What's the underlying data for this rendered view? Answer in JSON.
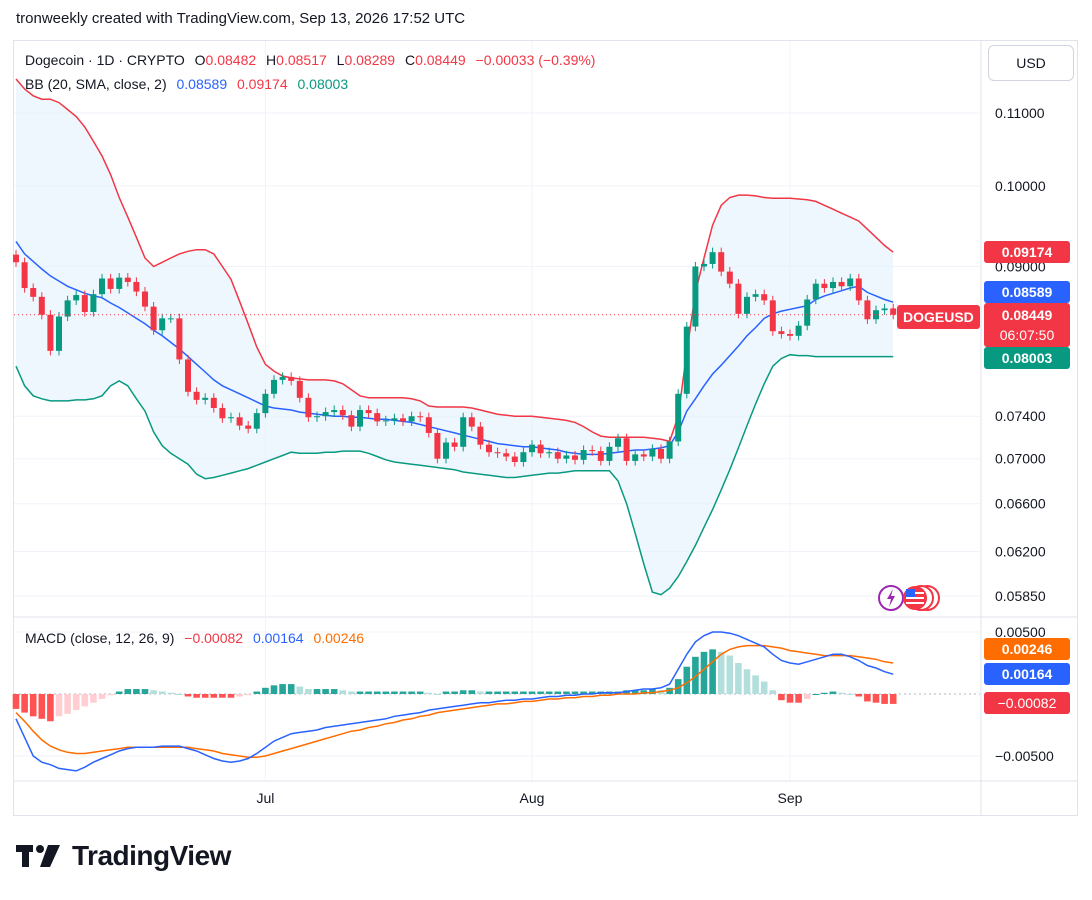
{
  "header": {
    "text": "tronweekly created with TradingView.com, Sep 13, 2026 17:52 UTC"
  },
  "currency": "USD",
  "symbol_tag": "DOGEUSD",
  "countdown": "06:07:50",
  "legend": {
    "title": "Dogecoin · 1D · CRYPTO",
    "o_label": "O",
    "o_value": "0.08482",
    "h_label": "H",
    "h_value": "0.08517",
    "l_label": "L",
    "l_value": "0.08289",
    "c_label": "C",
    "c_value": "0.08449",
    "change": "−0.00033 (−0.39%)",
    "bb_title": "BB (20, SMA, close, 2)",
    "bb_basis": "0.08589",
    "bb_upper": "0.09174",
    "bb_lower": "0.08003",
    "macd_title": "MACD (close, 12, 26, 9)",
    "macd_hist": "−0.00082",
    "macd_line": "0.00164",
    "macd_signal": "0.00246"
  },
  "price_tags": {
    "upper": "0.09174",
    "basis": "0.08589",
    "last": "0.08449",
    "lower": "0.08003",
    "macd_signal": "0.00246",
    "macd_line": "0.00164",
    "macd_hist": "−0.00082"
  },
  "colors": {
    "up": "#089981",
    "down": "#f23645",
    "basis": "#2962ff",
    "upper": "#f23645",
    "lower": "#089981",
    "macd": "#2962ff",
    "signal": "#ff6d00",
    "fill": "#e3f2fd"
  },
  "branding": "TradingView",
  "chart_data": [
    {
      "type": "candlestick",
      "title": "Dogecoin · 1D · CRYPTO",
      "x_axis_labels": [
        "Jul",
        "Aug",
        "Sep"
      ],
      "y_ticks": [
        "0.11000",
        "0.10000",
        "0.09000",
        "0.07400",
        "0.07000",
        "0.06600",
        "0.06200",
        "0.05850"
      ],
      "y_tick_values": [
        0.11,
        0.1,
        0.09,
        0.074,
        0.07,
        0.066,
        0.062,
        0.0585
      ],
      "y_scale": "log",
      "grid": true,
      "close": [
        0.0905,
        0.0875,
        0.0865,
        0.0845,
        0.0806,
        0.0843,
        0.0861,
        0.0867,
        0.0848,
        0.0868,
        0.0886,
        0.0874,
        0.0887,
        0.0882,
        0.0871,
        0.0854,
        0.0828,
        0.0841,
        0.0841,
        0.0797,
        0.0764,
        0.0756,
        0.0758,
        0.0748,
        0.0738,
        0.0739,
        0.0731,
        0.0728,
        0.0743,
        0.0762,
        0.0776,
        0.0779,
        0.0775,
        0.0758,
        0.0739,
        0.074,
        0.0744,
        0.0746,
        0.0741,
        0.073,
        0.0746,
        0.0743,
        0.0735,
        0.0736,
        0.0738,
        0.0735,
        0.074,
        0.0739,
        0.0724,
        0.07,
        0.0715,
        0.0711,
        0.0739,
        0.073,
        0.0713,
        0.0706,
        0.0705,
        0.0702,
        0.0697,
        0.0706,
        0.0713,
        0.0705,
        0.0706,
        0.07,
        0.0703,
        0.0699,
        0.0708,
        0.0707,
        0.0698,
        0.0711,
        0.0719,
        0.0698,
        0.0704,
        0.0702,
        0.0709,
        0.07,
        0.0716,
        0.0762,
        0.0832,
        0.09,
        0.0903,
        0.0917,
        0.0894,
        0.088,
        0.0846,
        0.0865,
        0.0868,
        0.0861,
        0.0827,
        0.0824,
        0.0822,
        0.0833,
        0.0862,
        0.088,
        0.0875,
        0.0882,
        0.0877,
        0.0886,
        0.0861,
        0.084,
        0.085,
        0.0852,
        0.0845
      ],
      "bb_basis": [
        0.093,
        0.0915,
        0.0906,
        0.0897,
        0.0889,
        0.0883,
        0.0877,
        0.0873,
        0.0869,
        0.0866,
        0.0864,
        0.0858,
        0.0853,
        0.0847,
        0.0841,
        0.0835,
        0.0828,
        0.0822,
        0.0815,
        0.0808,
        0.08,
        0.0792,
        0.0784,
        0.0776,
        0.077,
        0.0766,
        0.0762,
        0.0758,
        0.0754,
        0.075,
        0.0748,
        0.0747,
        0.0746,
        0.0744,
        0.0743,
        0.0742,
        0.0741,
        0.074,
        0.074,
        0.0739,
        0.0739,
        0.0738,
        0.0737,
        0.0737,
        0.0736,
        0.0735,
        0.0734,
        0.0732,
        0.073,
        0.0728,
        0.0726,
        0.0724,
        0.0722,
        0.072,
        0.0718,
        0.0716,
        0.0714,
        0.0713,
        0.0712,
        0.0711,
        0.0711,
        0.071,
        0.0709,
        0.0708,
        0.0706,
        0.0705,
        0.0704,
        0.0704,
        0.0704,
        0.0705,
        0.0706,
        0.0707,
        0.0708,
        0.0708,
        0.0709,
        0.071,
        0.0712,
        0.0725,
        0.0745,
        0.0757,
        0.077,
        0.0782,
        0.0791,
        0.0801,
        0.0811,
        0.0822,
        0.0831,
        0.0841,
        0.0846,
        0.0849,
        0.0851,
        0.0853,
        0.0855,
        0.0862,
        0.0866,
        0.0869,
        0.0872,
        0.0875,
        0.0877,
        0.087,
        0.0866,
        0.0862,
        0.0859
      ],
      "bb_upper": [
        0.115,
        0.1135,
        0.1125,
        0.112,
        0.112,
        0.1115,
        0.1105,
        0.1095,
        0.108,
        0.106,
        0.104,
        0.1015,
        0.0985,
        0.096,
        0.0935,
        0.091,
        0.09,
        0.0905,
        0.091,
        0.0915,
        0.0918,
        0.092,
        0.092,
        0.0915,
        0.09,
        0.0885,
        0.086,
        0.0835,
        0.081,
        0.0792,
        0.0785,
        0.078,
        0.0778,
        0.0777,
        0.0776,
        0.0776,
        0.0776,
        0.0775,
        0.0772,
        0.0766,
        0.076,
        0.0758,
        0.0758,
        0.0758,
        0.0758,
        0.0758,
        0.0757,
        0.0755,
        0.075,
        0.0749,
        0.0749,
        0.0749,
        0.0749,
        0.0748,
        0.0746,
        0.0744,
        0.0742,
        0.0741,
        0.074,
        0.074,
        0.074,
        0.0739,
        0.0738,
        0.0737,
        0.0736,
        0.0734,
        0.073,
        0.0725,
        0.0721,
        0.072,
        0.072,
        0.072,
        0.072,
        0.072,
        0.0719,
        0.0718,
        0.0716,
        0.074,
        0.0805,
        0.087,
        0.091,
        0.095,
        0.0975,
        0.0985,
        0.0988,
        0.0988,
        0.0987,
        0.0985,
        0.0984,
        0.0984,
        0.0984,
        0.0983,
        0.0982,
        0.098,
        0.0975,
        0.097,
        0.0965,
        0.096,
        0.0955,
        0.0945,
        0.0935,
        0.0925,
        0.0917
      ],
      "bb_lower": [
        0.079,
        0.077,
        0.076,
        0.0757,
        0.0755,
        0.0755,
        0.0755,
        0.0756,
        0.0756,
        0.0757,
        0.076,
        0.077,
        0.0775,
        0.077,
        0.0757,
        0.0745,
        0.0725,
        0.0712,
        0.0705,
        0.07,
        0.0695,
        0.0686,
        0.0682,
        0.0683,
        0.0685,
        0.0687,
        0.0689,
        0.0691,
        0.0694,
        0.0697,
        0.07,
        0.0703,
        0.0706,
        0.0705,
        0.0705,
        0.0705,
        0.0706,
        0.0706,
        0.0707,
        0.0707,
        0.0707,
        0.0705,
        0.0702,
        0.0699,
        0.0697,
        0.0696,
        0.0695,
        0.0694,
        0.0693,
        0.0692,
        0.0691,
        0.069,
        0.0688,
        0.0687,
        0.0686,
        0.0685,
        0.0684,
        0.0683,
        0.0683,
        0.0684,
        0.0685,
        0.0686,
        0.0687,
        0.0687,
        0.0688,
        0.0689,
        0.0689,
        0.0689,
        0.0689,
        0.0689,
        0.068,
        0.066,
        0.0635,
        0.061,
        0.0588,
        0.0586,
        0.0591,
        0.06,
        0.0612,
        0.0625,
        0.064,
        0.0655,
        0.0672,
        0.069,
        0.071,
        0.0731,
        0.0752,
        0.0772,
        0.079,
        0.0798,
        0.0802,
        0.0801,
        0.0801,
        0.08,
        0.08,
        0.08,
        0.08,
        0.08,
        0.08,
        0.08,
        0.08,
        0.08,
        0.08
      ]
    },
    {
      "type": "macd",
      "title": "MACD (close, 12, 26, 9)",
      "y_ticks": [
        "0.00500",
        "−0.00500"
      ],
      "y_tick_values": [
        0.005,
        -0.005
      ],
      "histogram": [
        -0.0012,
        -0.0015,
        -0.0018,
        -0.002,
        -0.0022,
        -0.0018,
        -0.0016,
        -0.0013,
        -0.001,
        -0.0007,
        -0.0004,
        -0.0001,
        0.0002,
        0.0004,
        0.0004,
        0.0004,
        0.0003,
        0.0002,
        0.0001,
        0.0,
        -0.0002,
        -0.0003,
        -0.0003,
        -0.0003,
        -0.0003,
        -0.0003,
        -0.0002,
        -0.0001,
        0.0002,
        0.0005,
        0.0007,
        0.0008,
        0.0008,
        0.0006,
        0.0004,
        0.0004,
        0.0004,
        0.0004,
        0.0003,
        0.0002,
        0.0002,
        0.0002,
        0.0002,
        0.0002,
        0.0002,
        0.0002,
        0.0002,
        0.0002,
        0.0001,
        0.0,
        0.0002,
        0.0002,
        0.0003,
        0.0003,
        0.0002,
        0.0002,
        0.0002,
        0.0002,
        0.0002,
        0.0002,
        0.0002,
        0.0002,
        0.0002,
        0.0002,
        0.0002,
        0.0002,
        0.0002,
        0.0002,
        0.0002,
        0.0002,
        0.0002,
        0.0003,
        0.0003,
        0.0003,
        0.0004,
        0.0003,
        0.0005,
        0.0012,
        0.0022,
        0.003,
        0.0034,
        0.0036,
        0.0034,
        0.0031,
        0.0025,
        0.002,
        0.0015,
        0.001,
        0.0003,
        -0.0005,
        -0.0007,
        -0.0007,
        -0.0004,
        0.0,
        0.0001,
        0.0002,
        0.0001,
        0.0,
        -0.0002,
        -0.0006,
        -0.0007,
        -0.0008,
        -0.0008
      ],
      "macd": [
        -0.002,
        -0.0035,
        -0.005,
        -0.0055,
        -0.0057,
        -0.006,
        -0.0061,
        -0.0062,
        -0.0059,
        -0.0055,
        -0.0052,
        -0.0049,
        -0.0046,
        -0.0044,
        -0.0043,
        -0.0043,
        -0.0043,
        -0.0042,
        -0.0042,
        -0.0042,
        -0.0044,
        -0.0046,
        -0.0049,
        -0.0052,
        -0.0054,
        -0.0055,
        -0.0054,
        -0.0052,
        -0.0048,
        -0.0043,
        -0.0038,
        -0.0035,
        -0.0032,
        -0.0031,
        -0.003,
        -0.0029,
        -0.0027,
        -0.0026,
        -0.0025,
        -0.0024,
        -0.0023,
        -0.0022,
        -0.0021,
        -0.002,
        -0.0018,
        -0.0017,
        -0.0016,
        -0.0015,
        -0.0013,
        -0.0012,
        -0.0011,
        -0.001,
        -0.0009,
        -0.0008,
        -0.0007,
        -0.0007,
        -0.0006,
        -0.0005,
        -0.0005,
        -0.0004,
        -0.0004,
        -0.0003,
        -0.0002,
        -0.0002,
        -0.0001,
        -0.0001,
        0.0,
        0.0,
        0.0001,
        0.0001,
        0.0001,
        0.0002,
        0.0003,
        0.0004,
        0.0004,
        0.0005,
        0.0008,
        0.002,
        0.0032,
        0.0042,
        0.0047,
        0.005,
        0.005,
        0.0049,
        0.0047,
        0.0044,
        0.0041,
        0.0038,
        0.0032,
        0.0027,
        0.0025,
        0.0024,
        0.0026,
        0.0028,
        0.003,
        0.0032,
        0.0032,
        0.003,
        0.0027,
        0.0023,
        0.0021,
        0.0018,
        0.0016
      ],
      "signal": [
        -0.0015,
        -0.0022,
        -0.003,
        -0.0037,
        -0.0042,
        -0.0045,
        -0.0047,
        -0.0048,
        -0.0048,
        -0.0047,
        -0.0046,
        -0.0045,
        -0.0044,
        -0.0043,
        -0.0043,
        -0.0043,
        -0.0043,
        -0.0043,
        -0.0043,
        -0.0043,
        -0.0043,
        -0.0044,
        -0.0045,
        -0.0046,
        -0.0048,
        -0.0049,
        -0.005,
        -0.0051,
        -0.0051,
        -0.005,
        -0.0048,
        -0.0046,
        -0.0044,
        -0.0042,
        -0.004,
        -0.0038,
        -0.0036,
        -0.0034,
        -0.0032,
        -0.003,
        -0.0029,
        -0.0027,
        -0.0026,
        -0.0024,
        -0.0023,
        -0.0021,
        -0.002,
        -0.0018,
        -0.0017,
        -0.0015,
        -0.0014,
        -0.0013,
        -0.0012,
        -0.0011,
        -0.001,
        -0.0009,
        -0.0008,
        -0.0008,
        -0.0007,
        -0.0006,
        -0.0006,
        -0.0005,
        -0.0004,
        -0.0004,
        -0.0003,
        -0.0003,
        -0.0002,
        -0.0002,
        -0.0001,
        -0.0001,
        0.0,
        0.0,
        0.0,
        0.0001,
        0.0001,
        0.0002,
        0.0003,
        0.0005,
        0.0009,
        0.0014,
        0.002,
        0.0026,
        0.0032,
        0.0036,
        0.0038,
        0.0039,
        0.0039,
        0.0039,
        0.0038,
        0.0037,
        0.0035,
        0.0034,
        0.0033,
        0.0032,
        0.0031,
        0.0031,
        0.0031,
        0.0031,
        0.003,
        0.0029,
        0.0028,
        0.0026,
        0.0025
      ]
    }
  ]
}
